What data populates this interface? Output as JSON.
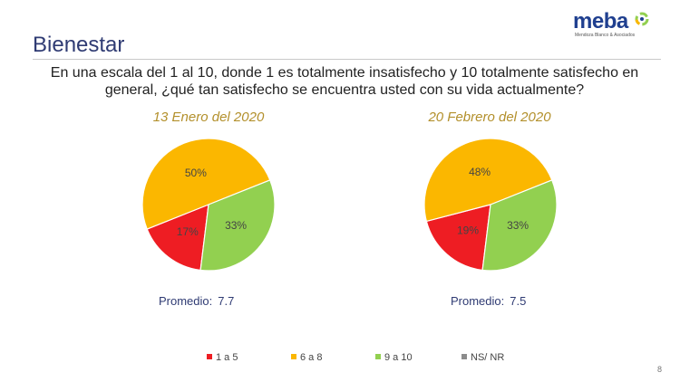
{
  "slide": {
    "title": "Bienestar",
    "question": "En una escala del 1 al 10, donde 1 es totalmente insatisfecho y 10 totalmente satisfecho en general, ¿qué tan satisfecho se encuentra usted con su vida actualmente?",
    "page_number": "8"
  },
  "logo": {
    "word": "meba",
    "tagline": "Mendoza Blanco & Asociados"
  },
  "colors": {
    "red": "#ee1d23",
    "orange": "#fbb700",
    "green": "#92d050",
    "gray": "#8c8c8c"
  },
  "chart_data": [
    {
      "type": "pie",
      "title": "13 Enero del 2020",
      "categories": [
        "1 a 5",
        "6 a 8",
        "9 a 10",
        "NS/ NR"
      ],
      "values": [
        17,
        50,
        33,
        0
      ],
      "labels": [
        "17%",
        "50%",
        "33%",
        ""
      ],
      "average_label": "Promedio:",
      "average_value": "7.7"
    },
    {
      "type": "pie",
      "title": "20 Febrero del 2020",
      "categories": [
        "1 a 5",
        "6 a 8",
        "9 a 10",
        "NS/ NR"
      ],
      "values": [
        19,
        48,
        33,
        0
      ],
      "labels": [
        "19%",
        "48%",
        "33%",
        ""
      ],
      "average_label": "Promedio:",
      "average_value": "7.5"
    }
  ],
  "legend": [
    {
      "label": "1 a 5",
      "color": "#ee1d23"
    },
    {
      "label": "6 a 8",
      "color": "#fbb700"
    },
    {
      "label": "9 a 10",
      "color": "#92d050"
    },
    {
      "label": "NS/ NR",
      "color": "#8c8c8c"
    }
  ]
}
